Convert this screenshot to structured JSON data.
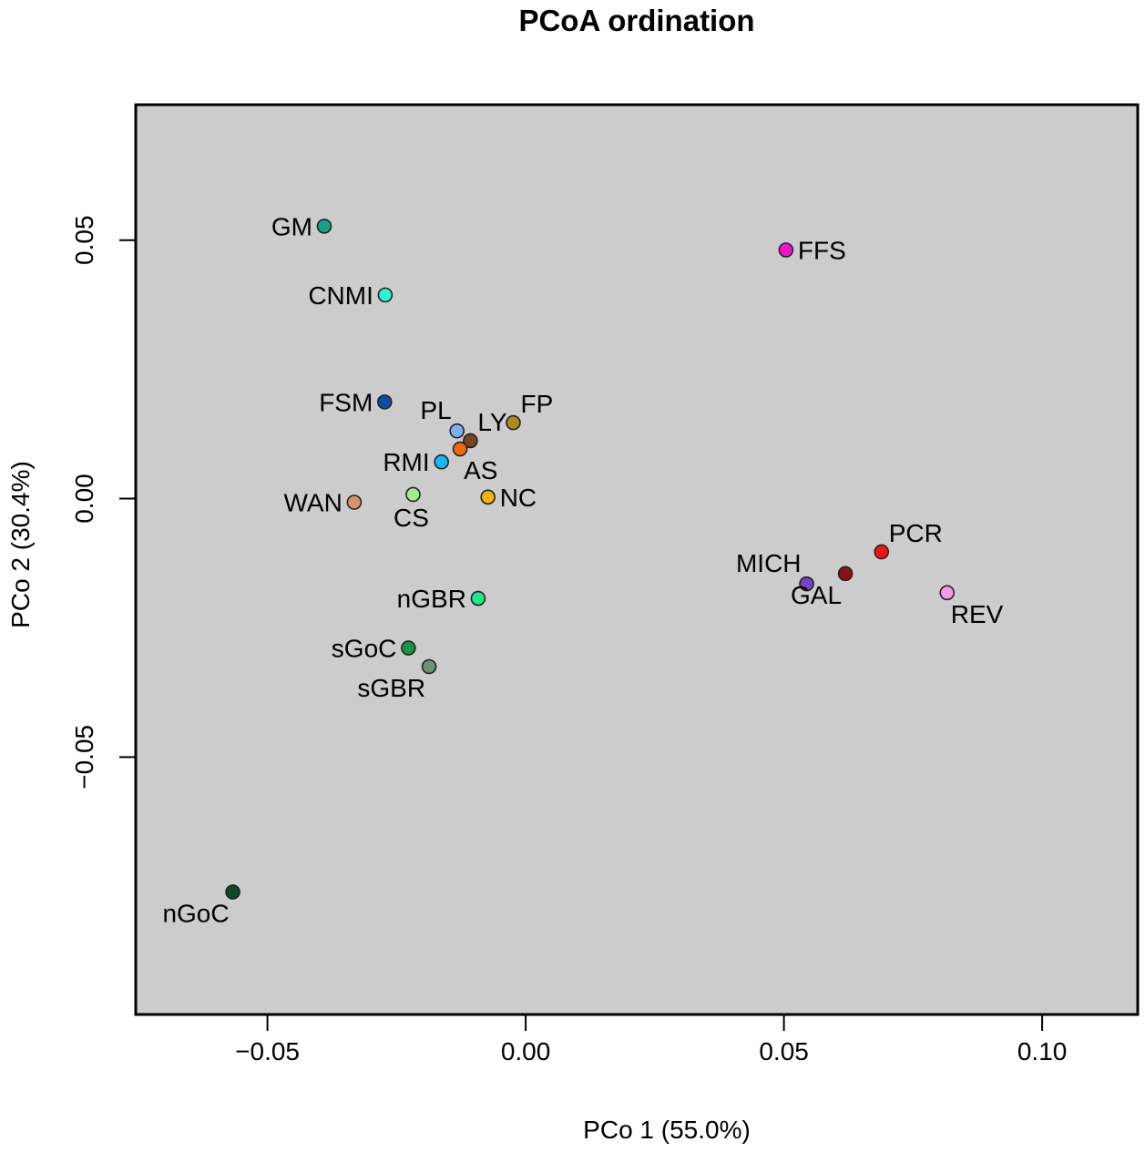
{
  "chart_data": {
    "type": "scatter",
    "title": "PCoA ordination",
    "xlabel": "PCo 1 (55.0%)",
    "ylabel": "PCo 2 (30.4%)",
    "xlim": [
      -0.0755,
      0.1185
    ],
    "ylim": [
      -0.0998,
      0.0762
    ],
    "xticks": [
      -0.05,
      0.0,
      0.05,
      0.1
    ],
    "xtick_labels": [
      "−0.05",
      "0.00",
      "0.05",
      "0.10"
    ],
    "yticks": [
      -0.05,
      0.0,
      0.05
    ],
    "ytick_labels": [
      "−0.05",
      "0.00",
      "0.05"
    ],
    "background": "#cccccc",
    "grid": false,
    "legend": "none",
    "points": [
      {
        "label": "GM",
        "x": -0.039,
        "y": 0.0527,
        "color": "#1aa08a",
        "label_pos": "left"
      },
      {
        "label": "CNMI",
        "x": -0.0272,
        "y": 0.0394,
        "color": "#2ff2cf",
        "label_pos": "left"
      },
      {
        "label": "FSM",
        "x": -0.0273,
        "y": 0.0187,
        "color": "#0a4ea8",
        "label_pos": "left"
      },
      {
        "label": "PL",
        "x": -0.0133,
        "y": 0.0131,
        "color": "#7bb2f6",
        "label_pos": "upper-left"
      },
      {
        "label": "LY",
        "x": -0.0107,
        "y": 0.0112,
        "color": "#7a4524",
        "label_pos": "upper-right"
      },
      {
        "label": "FP",
        "x": -0.0024,
        "y": 0.0147,
        "color": "#a88d1a",
        "label_pos": "upper-right"
      },
      {
        "label": "AS",
        "x": -0.0127,
        "y": 0.0096,
        "color": "#f06a10",
        "label_pos": "lower-right"
      },
      {
        "label": "RMI",
        "x": -0.0163,
        "y": 0.0071,
        "color": "#15b8f2",
        "label_pos": "left"
      },
      {
        "label": "WAN",
        "x": -0.0332,
        "y": -0.0007,
        "color": "#d9936b",
        "label_pos": "left"
      },
      {
        "label": "CS",
        "x": -0.0218,
        "y": 0.0008,
        "color": "#a3ec8e",
        "label_pos": "below"
      },
      {
        "label": "NC",
        "x": -0.0073,
        "y": 0.0003,
        "color": "#f5b312",
        "label_pos": "right"
      },
      {
        "label": "nGBR",
        "x": -0.0092,
        "y": -0.0193,
        "color": "#1ee88a",
        "label_pos": "left"
      },
      {
        "label": "sGoC",
        "x": -0.0227,
        "y": -0.0289,
        "color": "#169640",
        "label_pos": "left"
      },
      {
        "label": "sGBR",
        "x": -0.0187,
        "y": -0.0325,
        "color": "#6e9178",
        "label_pos": "lower-left"
      },
      {
        "label": "nGoC",
        "x": -0.0567,
        "y": -0.0761,
        "color": "#0b4a22",
        "label_pos": "lower-left"
      },
      {
        "label": "FFS",
        "x": 0.0504,
        "y": 0.0481,
        "color": "#ef15cc",
        "label_pos": "right"
      },
      {
        "label": "PCR",
        "x": 0.0689,
        "y": -0.0103,
        "color": "#f01414",
        "label_pos": "upper-right"
      },
      {
        "label": "MICH",
        "x": 0.0544,
        "y": -0.0165,
        "color": "#7a42c8",
        "label_pos": "upper-left"
      },
      {
        "label": "GAL",
        "x": 0.0619,
        "y": -0.0145,
        "color": "#8b1212",
        "label_pos": "lower-left"
      },
      {
        "label": "REV",
        "x": 0.0816,
        "y": -0.0182,
        "color": "#f59ae8",
        "label_pos": "lower-right"
      }
    ]
  }
}
